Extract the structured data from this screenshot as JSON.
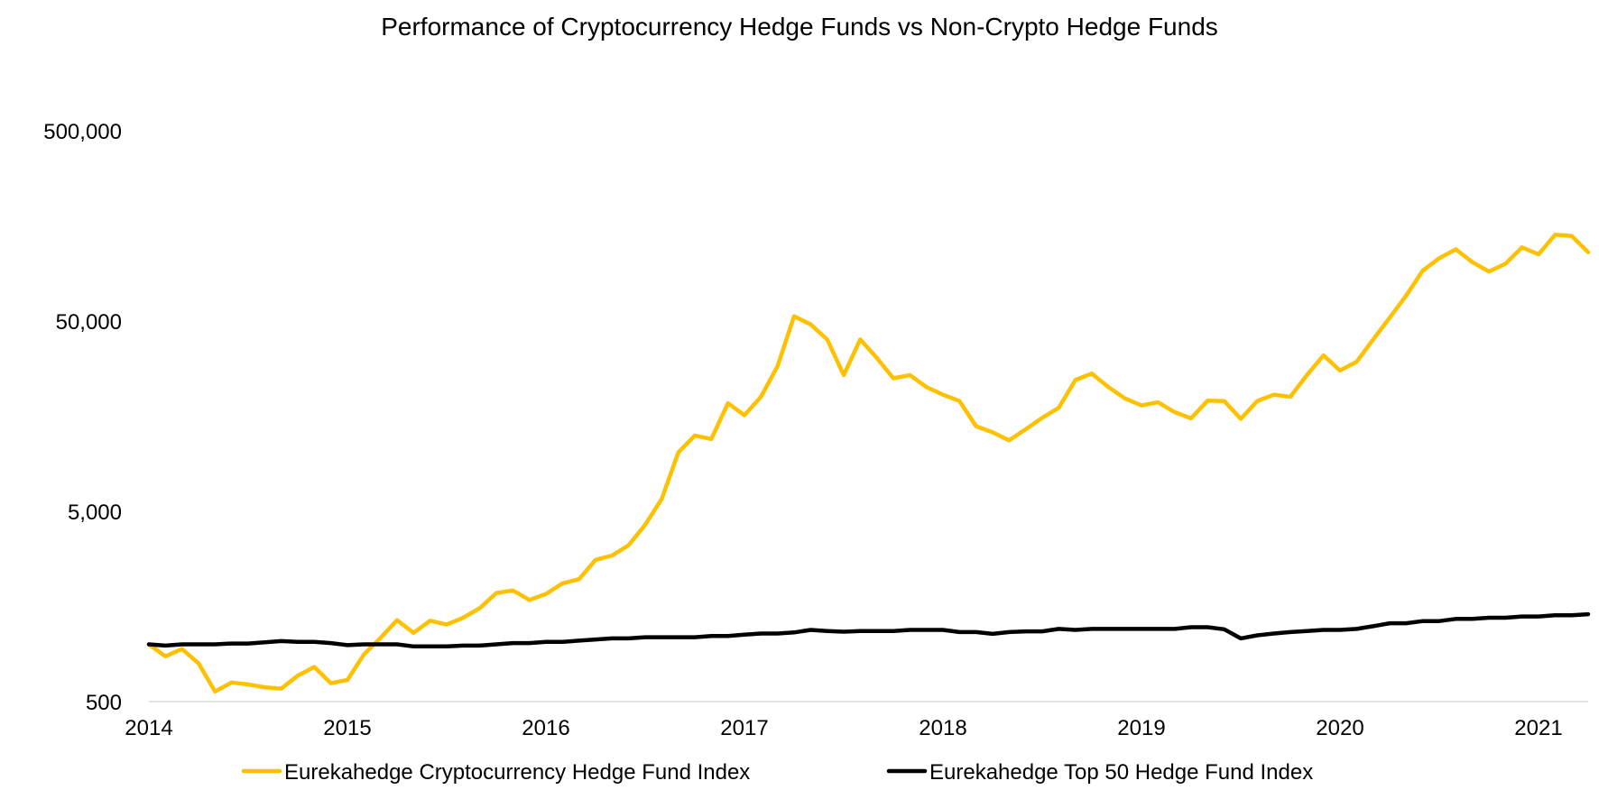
{
  "chart_data": {
    "type": "line",
    "title": "Performance of Cryptocurrency Hedge Funds vs Non-Crypto Hedge Funds",
    "xlabel": "",
    "ylabel": "",
    "y_scale": "log",
    "ylim": [
      500,
      500000
    ],
    "y_ticks": [
      500,
      5000,
      50000,
      500000
    ],
    "y_tick_labels": [
      "500",
      "5,000",
      "50,000",
      "500,000"
    ],
    "xlim": [
      "2014-01",
      "2021-04"
    ],
    "x_ticks": [
      "2014-01",
      "2015-01",
      "2016-01",
      "2017-01",
      "2018-01",
      "2019-01",
      "2020-01",
      "2021-01"
    ],
    "x_tick_labels": [
      "2014",
      "2015",
      "2016",
      "2017",
      "2018",
      "2019",
      "2020",
      "2021"
    ],
    "grid": false,
    "legend_position": "bottom",
    "x": [
      "2014-01",
      "2014-02",
      "2014-03",
      "2014-04",
      "2014-05",
      "2014-06",
      "2014-07",
      "2014-08",
      "2014-09",
      "2014-10",
      "2014-11",
      "2014-12",
      "2015-01",
      "2015-02",
      "2015-03",
      "2015-04",
      "2015-05",
      "2015-06",
      "2015-07",
      "2015-08",
      "2015-09",
      "2015-10",
      "2015-11",
      "2015-12",
      "2016-01",
      "2016-02",
      "2016-03",
      "2016-04",
      "2016-05",
      "2016-06",
      "2016-07",
      "2016-08",
      "2016-09",
      "2016-10",
      "2016-11",
      "2016-12",
      "2017-01",
      "2017-02",
      "2017-03",
      "2017-04",
      "2017-05",
      "2017-06",
      "2017-07",
      "2017-08",
      "2017-09",
      "2017-10",
      "2017-11",
      "2017-12",
      "2018-01",
      "2018-02",
      "2018-03",
      "2018-04",
      "2018-05",
      "2018-06",
      "2018-07",
      "2018-08",
      "2018-09",
      "2018-10",
      "2018-11",
      "2018-12",
      "2019-01",
      "2019-02",
      "2019-03",
      "2019-04",
      "2019-05",
      "2019-06",
      "2019-07",
      "2019-08",
      "2019-09",
      "2019-10",
      "2019-11",
      "2019-12",
      "2020-01",
      "2020-02",
      "2020-03",
      "2020-04",
      "2020-05",
      "2020-06",
      "2020-07",
      "2020-08",
      "2020-09",
      "2020-10",
      "2020-11",
      "2020-12",
      "2021-01",
      "2021-02",
      "2021-03",
      "2021-04"
    ],
    "series": [
      {
        "name": "Eurekahedge Cryptocurrency Hedge Fund Index",
        "color": "#ffc000",
        "values": [
          1000,
          865,
          945,
          795,
          565,
          630,
          615,
          595,
          585,
          685,
          760,
          625,
          650,
          885,
          1080,
          1340,
          1150,
          1330,
          1270,
          1380,
          1550,
          1860,
          1920,
          1710,
          1840,
          2090,
          2200,
          2780,
          2930,
          3320,
          4250,
          5800,
          10200,
          12500,
          12000,
          18500,
          16000,
          20000,
          29000,
          53000,
          48000,
          40000,
          26000,
          40000,
          32000,
          25000,
          26000,
          22500,
          20500,
          19000,
          14000,
          13000,
          11800,
          13500,
          15500,
          17500,
          24500,
          26500,
          22500,
          19600,
          18000,
          18700,
          16600,
          15400,
          19100,
          19000,
          15300,
          19000,
          20500,
          20000,
          26000,
          33000,
          27500,
          30500,
          40000,
          52000,
          68000,
          92000,
          107000,
          119000,
          102000,
          91000,
          100000,
          122000,
          112000,
          142000,
          140000,
          115000
        ]
      },
      {
        "name": "Eurekahedge Top 50 Hedge Fund Index",
        "color": "#000000",
        "values": [
          1000,
          985,
          1000,
          1000,
          1000,
          1010,
          1010,
          1025,
          1040,
          1030,
          1030,
          1015,
          990,
          1000,
          1000,
          1000,
          975,
          975,
          975,
          985,
          985,
          1000,
          1015,
          1015,
          1030,
          1030,
          1045,
          1060,
          1075,
          1075,
          1090,
          1090,
          1090,
          1090,
          1105,
          1105,
          1125,
          1140,
          1140,
          1155,
          1190,
          1175,
          1165,
          1175,
          1175,
          1175,
          1190,
          1190,
          1190,
          1160,
          1160,
          1135,
          1160,
          1170,
          1170,
          1205,
          1190,
          1205,
          1205,
          1205,
          1205,
          1205,
          1205,
          1230,
          1230,
          1200,
          1075,
          1115,
          1140,
          1160,
          1175,
          1190,
          1190,
          1205,
          1245,
          1290,
          1290,
          1325,
          1325,
          1360,
          1360,
          1380,
          1380,
          1400,
          1400,
          1420,
          1420,
          1440
        ]
      }
    ]
  }
}
